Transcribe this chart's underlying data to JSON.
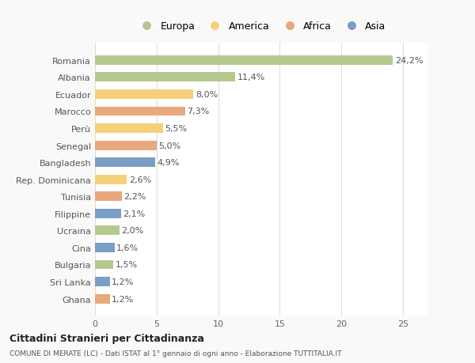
{
  "countries": [
    "Romania",
    "Albania",
    "Ecuador",
    "Marocco",
    "Perù",
    "Senegal",
    "Bangladesh",
    "Rep. Dominicana",
    "Tunisia",
    "Filippine",
    "Ucraina",
    "Cina",
    "Bulgaria",
    "Sri Lanka",
    "Ghana"
  ],
  "values": [
    24.2,
    11.4,
    8.0,
    7.3,
    5.5,
    5.0,
    4.9,
    2.6,
    2.2,
    2.1,
    2.0,
    1.6,
    1.5,
    1.2,
    1.2
  ],
  "labels": [
    "24,2%",
    "11,4%",
    "8,0%",
    "7,3%",
    "5,5%",
    "5,0%",
    "4,9%",
    "2,6%",
    "2,2%",
    "2,1%",
    "2,0%",
    "1,6%",
    "1,5%",
    "1,2%",
    "1,2%"
  ],
  "continents": [
    "Europa",
    "Europa",
    "America",
    "Africa",
    "America",
    "Africa",
    "Asia",
    "America",
    "Africa",
    "Asia",
    "Europa",
    "Asia",
    "Europa",
    "Asia",
    "Africa"
  ],
  "colors": {
    "Europa": "#b5c98e",
    "America": "#f5d07a",
    "Africa": "#e8a87c",
    "Asia": "#7b9ec7"
  },
  "legend_order": [
    "Europa",
    "America",
    "Africa",
    "Asia"
  ],
  "title1": "Cittadini Stranieri per Cittadinanza",
  "title2": "COMUNE DI MERATE (LC) - Dati ISTAT al 1° gennaio di ogni anno - Elaborazione TUTTITALIA.IT",
  "xlim": [
    0,
    27
  ],
  "xticks": [
    0,
    5,
    10,
    15,
    20,
    25
  ],
  "background_color": "#f9f9f9",
  "bar_background": "#ffffff",
  "label_fontsize": 8,
  "ytick_fontsize": 8,
  "xtick_fontsize": 8
}
